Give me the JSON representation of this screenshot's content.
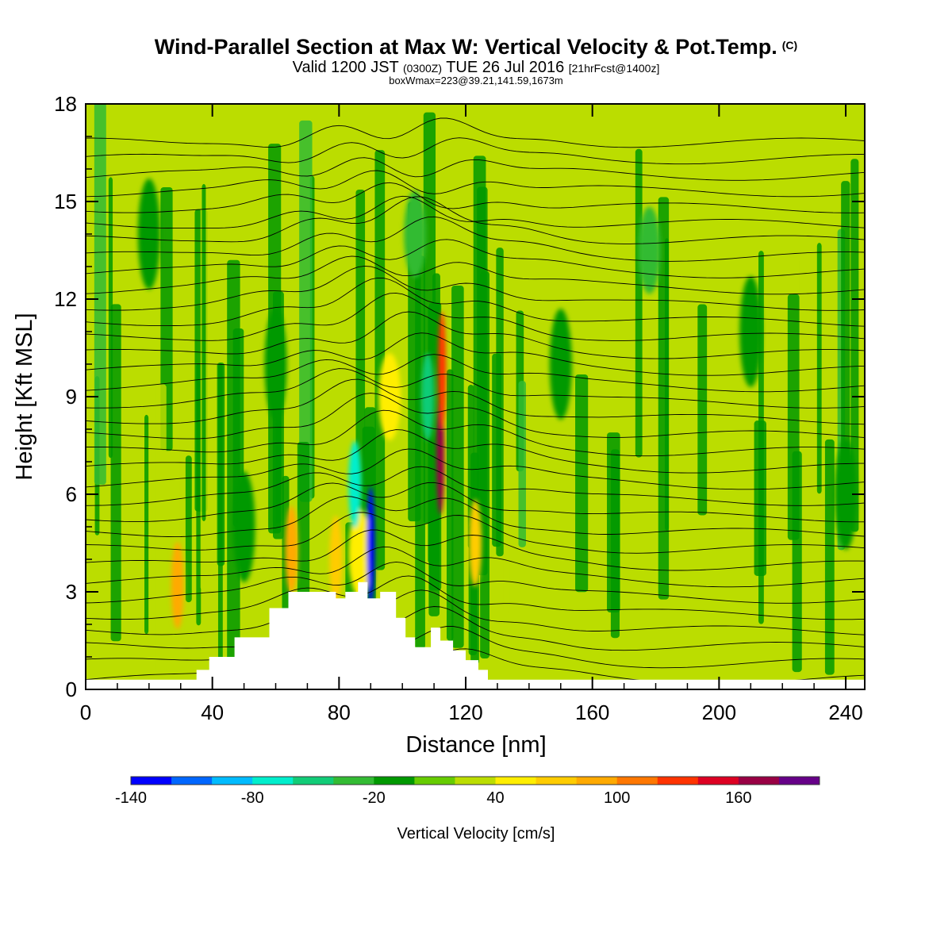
{
  "chart_data": {
    "type": "heatmap",
    "title": "Wind-Parallel Section at Max W: Vertical Velocity & Pot.Temp.",
    "title_mark": "(C)",
    "subtitle_parts": [
      "Valid 1200 JST ",
      "(0300Z)",
      " TUE 26 Jul 2016 ",
      "[21hrFcst@1400z]"
    ],
    "subtitle2": "boxWmax=223@39.21,141.59,1673m",
    "xlabel": "Distance [nm]",
    "ylabel": "Height [Kft MSL]",
    "xlim": [
      0,
      246
    ],
    "ylim": [
      0,
      18
    ],
    "x_ticks": [
      0,
      40,
      80,
      120,
      160,
      200,
      240
    ],
    "y_ticks": [
      0,
      3,
      6,
      9,
      12,
      15,
      18
    ],
    "colorbar": {
      "label": "Vertical Velocity [cm/s]",
      "min": -140,
      "step": 20,
      "tick_labels": [
        "-140",
        "-80",
        "-20",
        "40",
        "100",
        "160"
      ],
      "tick_values": [
        -140,
        -80,
        -20,
        40,
        100,
        160
      ],
      "colors": [
        "#0000ff",
        "#0066ff",
        "#00bbff",
        "#00eecc",
        "#11cc77",
        "#33bb33",
        "#009900",
        "#66cc00",
        "#bbdd00",
        "#ffee00",
        "#ffcc00",
        "#ffaa00",
        "#ff7700",
        "#ff3300",
        "#dd0022",
        "#990044",
        "#660088"
      ]
    },
    "terrain": [
      [
        0,
        0.3
      ],
      [
        35,
        0.3
      ],
      [
        35,
        0.6
      ],
      [
        39,
        0.6
      ],
      [
        39,
        1.0
      ],
      [
        47,
        1.0
      ],
      [
        47,
        1.6
      ],
      [
        58,
        1.6
      ],
      [
        58,
        2.5
      ],
      [
        64,
        2.5
      ],
      [
        64,
        3.0
      ],
      [
        79,
        3.0
      ],
      [
        79,
        2.8
      ],
      [
        82,
        2.8
      ],
      [
        82,
        3.0
      ],
      [
        86,
        3.0
      ],
      [
        86,
        3.3
      ],
      [
        89,
        3.3
      ],
      [
        89,
        2.8
      ],
      [
        93,
        2.8
      ],
      [
        93,
        3.0
      ],
      [
        98,
        3.0
      ],
      [
        98,
        2.2
      ],
      [
        101,
        2.2
      ],
      [
        101,
        1.6
      ],
      [
        104,
        1.6
      ],
      [
        104,
        1.3
      ],
      [
        109,
        1.3
      ],
      [
        109,
        1.9
      ],
      [
        112,
        1.9
      ],
      [
        112,
        1.5
      ],
      [
        116,
        1.5
      ],
      [
        116,
        1.2
      ],
      [
        120,
        1.2
      ],
      [
        120,
        0.9
      ],
      [
        124,
        0.9
      ],
      [
        124,
        0.6
      ],
      [
        127,
        0.6
      ],
      [
        127,
        0.3
      ],
      [
        246,
        0.3
      ]
    ],
    "velocity_features": [
      {
        "x": 112,
        "y": 7.2,
        "value": 160
      },
      {
        "x": 112.5,
        "y": 9.8,
        "value": 120
      },
      {
        "x": 65,
        "y": 4.3,
        "value": 80
      },
      {
        "x": 29,
        "y": 3.2,
        "value": 80
      },
      {
        "x": 123,
        "y": 4.5,
        "value": 60
      },
      {
        "x": 86.5,
        "y": 4.2,
        "value": 50
      },
      {
        "x": 79,
        "y": 4.0,
        "value": 60
      },
      {
        "x": 96,
        "y": 9.0,
        "value": 40
      },
      {
        "x": 90,
        "y": 4.4,
        "value": -140
      },
      {
        "x": 85,
        "y": 6.3,
        "value": -80
      },
      {
        "x": 108,
        "y": 9.0,
        "value": -60
      },
      {
        "x": 104,
        "y": 14.0,
        "value": -40
      },
      {
        "x": 178,
        "y": 13.5,
        "value": -40
      },
      {
        "x": 60,
        "y": 10.0,
        "value": -20
      },
      {
        "x": 20,
        "y": 14.0,
        "value": -20
      },
      {
        "x": 150,
        "y": 10.0,
        "value": -20
      },
      {
        "x": 210,
        "y": 11.0,
        "value": -20
      },
      {
        "x": 240,
        "y": 6.0,
        "value": -20
      },
      {
        "x": 50,
        "y": 5.0,
        "value": -20
      }
    ],
    "theta_isentropes": {
      "count": 34,
      "spacing_kft": 0.5
    }
  }
}
